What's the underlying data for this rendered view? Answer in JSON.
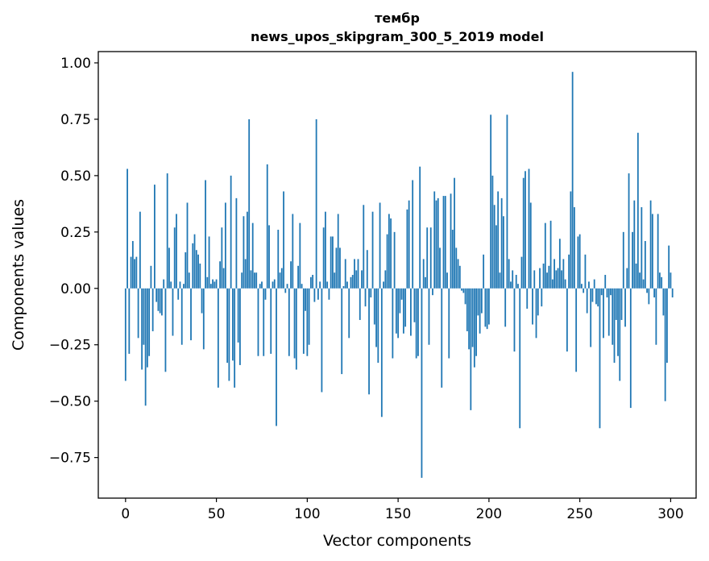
{
  "chart_data": {
    "type": "bar",
    "title": "тембр",
    "subtitle": "news_upos_skipgram_300_5_2019 model",
    "xlabel": "Vector components",
    "ylabel": "Components values",
    "xlim": [
      -15,
      314
    ],
    "ylim": [
      -0.93,
      1.05
    ],
    "xticks": [
      0,
      50,
      100,
      150,
      200,
      250,
      300
    ],
    "xtick_labels": [
      "0",
      "50",
      "100",
      "150",
      "200",
      "250",
      "300"
    ],
    "yticks": [
      -0.75,
      -0.5,
      -0.25,
      0.0,
      0.25,
      0.5,
      0.75,
      1.0
    ],
    "ytick_labels": [
      "−0.75",
      "−0.50",
      "−0.25",
      "0.00",
      "0.25",
      "0.50",
      "0.75",
      "1.00"
    ],
    "bar_color": "#1f77b4",
    "values": [
      -0.41,
      0.53,
      -0.29,
      0.14,
      0.21,
      0.13,
      0.14,
      -0.22,
      0.34,
      -0.36,
      -0.25,
      -0.52,
      -0.35,
      -0.3,
      0.1,
      -0.19,
      0.46,
      -0.06,
      -0.1,
      -0.11,
      -0.12,
      0.04,
      -0.37,
      0.51,
      0.18,
      0.03,
      -0.21,
      0.27,
      0.33,
      -0.05,
      0.03,
      -0.25,
      0.02,
      0.16,
      0.38,
      0.07,
      -0.23,
      0.2,
      0.24,
      0.17,
      0.15,
      0.11,
      -0.11,
      -0.27,
      0.48,
      0.05,
      0.23,
      0.02,
      0.04,
      0.03,
      0.04,
      -0.44,
      0.12,
      0.27,
      0.09,
      0.38,
      -0.33,
      -0.41,
      0.5,
      -0.32,
      -0.44,
      0.4,
      -0.24,
      -0.34,
      0.07,
      0.32,
      0.13,
      0.34,
      0.75,
      0.08,
      0.29,
      0.07,
      0.07,
      -0.3,
      0.02,
      0.03,
      -0.3,
      -0.05,
      0.55,
      0.28,
      -0.29,
      0.03,
      0.04,
      -0.61,
      0.26,
      0.07,
      0.09,
      0.43,
      -0.02,
      0.02,
      -0.3,
      0.12,
      0.33,
      -0.31,
      -0.36,
      0.1,
      0.29,
      0.02,
      -0.29,
      -0.1,
      -0.3,
      -0.25,
      0.05,
      0.06,
      -0.06,
      0.75,
      -0.05,
      0.03,
      -0.46,
      0.27,
      0.34,
      0.03,
      -0.05,
      0.23,
      0.23,
      0.07,
      0.18,
      0.33,
      0.18,
      -0.38,
      0.01,
      0.13,
      0.03,
      -0.22,
      0.05,
      0.06,
      0.13,
      0.08,
      0.13,
      -0.14,
      0.08,
      0.37,
      -0.08,
      0.17,
      -0.47,
      -0.04,
      0.34,
      -0.16,
      -0.26,
      -0.33,
      0.38,
      -0.57,
      0.03,
      0.08,
      0.24,
      0.33,
      0.31,
      -0.31,
      0.25,
      -0.2,
      -0.22,
      -0.11,
      -0.05,
      -0.2,
      -0.17,
      0.35,
      0.39,
      -0.21,
      0.48,
      -0.15,
      -0.31,
      -0.3,
      0.54,
      -0.84,
      0.13,
      0.05,
      0.27,
      -0.25,
      0.27,
      -0.03,
      0.43,
      0.39,
      0.4,
      0.18,
      -0.44,
      0.41,
      0.41,
      0.07,
      -0.31,
      0.42,
      0.26,
      0.49,
      0.18,
      0.13,
      0.1,
      -0.01,
      -0.02,
      -0.07,
      -0.19,
      -0.27,
      -0.54,
      -0.26,
      -0.35,
      -0.3,
      -0.12,
      -0.2,
      -0.11,
      0.15,
      -0.17,
      -0.18,
      -0.16,
      0.77,
      0.5,
      0.37,
      0.28,
      0.43,
      0.07,
      0.4,
      0.32,
      -0.17,
      0.77,
      0.13,
      0.03,
      0.08,
      -0.28,
      0.06,
      0.02,
      -0.62,
      0.14,
      0.49,
      0.52,
      -0.09,
      0.53,
      0.38,
      -0.16,
      0.08,
      -0.22,
      -0.12,
      0.09,
      -0.08,
      0.11,
      0.29,
      0.07,
      0.1,
      0.3,
      0.04,
      0.13,
      0.08,
      0.09,
      0.22,
      0.08,
      0.13,
      0.04,
      -0.28,
      0.15,
      0.43,
      0.96,
      0.36,
      -0.37,
      0.23,
      0.24,
      0.02,
      -0.02,
      0.15,
      -0.11,
      0.03,
      -0.26,
      -0.06,
      0.04,
      -0.07,
      -0.08,
      -0.62,
      -0.03,
      -0.22,
      0.06,
      -0.04,
      -0.21,
      -0.03,
      -0.25,
      -0.33,
      -0.14,
      -0.3,
      -0.41,
      -0.14,
      0.25,
      -0.17,
      0.09,
      0.51,
      -0.53,
      0.25,
      0.39,
      0.11,
      0.69,
      0.07,
      0.36,
      0.04,
      0.21,
      -0.02,
      -0.07,
      0.39,
      0.33,
      -0.04,
      -0.25,
      0.33,
      0.07,
      0.05,
      -0.12,
      -0.5,
      -0.33,
      0.19,
      0.07,
      -0.04
    ]
  }
}
